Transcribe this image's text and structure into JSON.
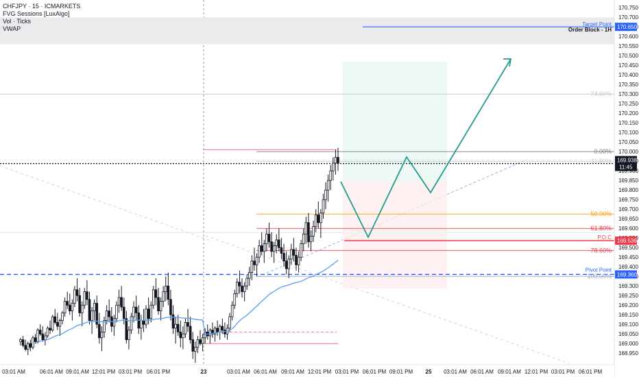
{
  "header": {
    "symbol_line": "CHFJPY · 15 · ICMARKETS",
    "indicator_1": "FVG Sessions [LuxAlgo]",
    "indicator_2": "Vol · Ticks",
    "indicator_3": "VWAP"
  },
  "chart_data": {
    "type": "candlestick",
    "symbol": "CHFJPY",
    "timeframe": "15",
    "exchange": "ICMARKETS",
    "ylim": [
      168.89,
      170.79
    ],
    "y_ticks": [
      "170.750",
      "170.700",
      "170.650",
      "170.600",
      "170.550",
      "170.500",
      "170.450",
      "170.400",
      "170.350",
      "170.300",
      "170.250",
      "170.200",
      "170.150",
      "170.100",
      "170.050",
      "170.000",
      "169.950",
      "169.900",
      "169.850",
      "169.800",
      "169.750",
      "169.700",
      "169.650",
      "169.600",
      "169.550",
      "169.500",
      "169.450",
      "169.400",
      "169.350",
      "169.300",
      "169.250",
      "169.200",
      "169.150",
      "169.100",
      "169.050",
      "169.000",
      "168.950"
    ],
    "x_labels": [
      "03:01 AM",
      "06:01 AM",
      "09:01 AM",
      "12:01 PM",
      "03:01 PM",
      "06:01 PM",
      "23",
      "03:01 AM",
      "06:01 AM",
      "09:01 AM",
      "12:01 PM",
      "03:01 PM",
      "06:01 PM",
      "09:01 PM",
      "25",
      "03:01 AM",
      "06:01 AM",
      "09:01 AM",
      "12:01 PM",
      "03:01 PM",
      "06:01 PM"
    ],
    "current_price": "169.938",
    "price_tags": [
      {
        "label": "170.650",
        "value": 170.65,
        "color": "#2962ff"
      },
      {
        "label": "169.536",
        "value": 169.536,
        "color": "#f23645"
      },
      {
        "label": "169.360",
        "value": 169.36,
        "color": "#2962ff"
      }
    ],
    "countdown": "11:45",
    "fib_levels": [
      {
        "label": "74.60%",
        "value": 170.3,
        "color": "#c9c9c9"
      },
      {
        "label": "0.00%",
        "value": 170.0,
        "color": "#787b86"
      },
      {
        "label": "11.80%",
        "value": 169.95,
        "color": "#c9c9c9"
      },
      {
        "label": "50.00%",
        "value": 169.675,
        "color": "#ff9800"
      },
      {
        "label": "61.80%",
        "value": 169.6,
        "color": "#f23645"
      },
      {
        "label": "78.60%",
        "value": 169.485,
        "color": "#f23645"
      },
      {
        "label": "100.00%",
        "value": 169.35,
        "color": "#9aa6c0"
      }
    ],
    "annotations": [
      {
        "label": "Target Point",
        "value": 170.65
      },
      {
        "label": "Order Block - 1H",
        "value": 170.65
      },
      {
        "label": "P.O.C",
        "value": 169.536
      },
      {
        "label": "Pivot Point",
        "value": 169.36
      }
    ],
    "order_block_zone": [
      170.56,
      170.7
    ],
    "projected_path": [
      {
        "x": "12:01 PM",
        "y": 169.94
      },
      {
        "x": "06:01 PM",
        "y": 169.58
      },
      {
        "x": "09:01 PM",
        "y": 170.02
      },
      {
        "x": "25",
        "y": 169.82
      },
      {
        "x": "06:01 AM",
        "y": 170.57
      }
    ],
    "candles": [
      [
        169.01,
        169.03,
        168.99,
        169.02
      ],
      [
        169.02,
        169.04,
        168.98,
        168.99
      ],
      [
        168.99,
        169.02,
        168.96,
        168.97
      ],
      [
        168.97,
        169.01,
        168.94,
        169.0
      ],
      [
        169.0,
        169.02,
        168.96,
        168.98
      ],
      [
        168.98,
        169.04,
        168.97,
        169.03
      ],
      [
        169.03,
        169.05,
        169.0,
        169.01
      ],
      [
        169.01,
        169.08,
        169.0,
        169.07
      ],
      [
        169.07,
        169.1,
        169.04,
        169.05
      ],
      [
        169.05,
        169.09,
        169.01,
        169.02
      ],
      [
        169.02,
        169.06,
        168.99,
        169.04
      ],
      [
        169.04,
        169.09,
        169.03,
        169.08
      ],
      [
        169.08,
        169.12,
        169.05,
        169.07
      ],
      [
        169.07,
        169.15,
        169.06,
        169.14
      ],
      [
        169.14,
        169.18,
        169.1,
        169.11
      ],
      [
        169.11,
        169.16,
        169.07,
        169.09
      ],
      [
        169.09,
        169.13,
        169.04,
        169.12
      ],
      [
        169.12,
        169.17,
        169.1,
        169.16
      ],
      [
        169.16,
        169.24,
        169.14,
        169.22
      ],
      [
        169.22,
        169.27,
        169.18,
        169.2
      ],
      [
        169.2,
        169.26,
        169.15,
        169.17
      ],
      [
        169.17,
        169.23,
        169.12,
        169.21
      ],
      [
        169.21,
        169.3,
        169.19,
        169.28
      ],
      [
        169.28,
        169.34,
        169.22,
        169.25
      ],
      [
        169.25,
        169.29,
        169.14,
        169.16
      ],
      [
        169.16,
        169.22,
        169.09,
        169.2
      ],
      [
        169.2,
        169.29,
        169.18,
        169.27
      ],
      [
        169.27,
        169.33,
        169.2,
        169.23
      ],
      [
        169.23,
        169.27,
        169.1,
        169.12
      ],
      [
        169.12,
        169.19,
        169.05,
        169.17
      ],
      [
        169.17,
        169.23,
        169.12,
        169.21
      ],
      [
        169.21,
        169.25,
        169.08,
        169.1
      ],
      [
        169.1,
        169.16,
        169.0,
        169.03
      ],
      [
        169.03,
        169.09,
        168.96,
        169.06
      ],
      [
        169.06,
        169.14,
        169.03,
        169.12
      ],
      [
        169.12,
        169.2,
        169.1,
        169.17
      ],
      [
        169.17,
        169.23,
        169.11,
        169.14
      ],
      [
        169.14,
        169.19,
        169.06,
        169.09
      ],
      [
        169.09,
        169.15,
        169.04,
        169.13
      ],
      [
        169.13,
        169.22,
        169.11,
        169.2
      ],
      [
        169.2,
        169.28,
        169.16,
        169.24
      ],
      [
        169.24,
        169.3,
        169.17,
        169.19
      ],
      [
        169.19,
        169.24,
        169.1,
        169.13
      ],
      [
        169.13,
        169.17,
        169.0,
        169.02
      ],
      [
        169.02,
        169.09,
        168.97,
        169.07
      ],
      [
        169.07,
        169.16,
        169.05,
        169.14
      ],
      [
        169.14,
        169.22,
        169.11,
        169.19
      ],
      [
        169.19,
        169.25,
        169.12,
        169.16
      ],
      [
        169.16,
        169.2,
        169.05,
        169.08
      ],
      [
        169.08,
        169.15,
        169.02,
        169.12
      ],
      [
        169.12,
        169.18,
        169.06,
        169.1
      ],
      [
        169.1,
        169.2,
        169.08,
        169.18
      ],
      [
        169.18,
        169.24,
        169.1,
        169.13
      ],
      [
        169.13,
        169.22,
        169.11,
        169.2
      ],
      [
        169.2,
        169.3,
        169.18,
        169.28
      ],
      [
        169.28,
        169.34,
        169.2,
        169.24
      ],
      [
        169.24,
        169.29,
        169.15,
        169.17
      ],
      [
        169.17,
        169.24,
        169.12,
        169.22
      ],
      [
        169.22,
        169.3,
        169.19,
        169.27
      ],
      [
        169.27,
        169.35,
        169.22,
        169.3
      ],
      [
        169.3,
        169.37,
        169.2,
        169.23
      ],
      [
        169.23,
        169.28,
        169.12,
        169.15
      ],
      [
        169.15,
        169.2,
        169.05,
        169.08
      ],
      [
        169.08,
        169.14,
        169.0,
        169.1
      ],
      [
        169.1,
        169.15,
        169.04,
        169.06
      ],
      [
        169.06,
        169.12,
        168.98,
        169.03
      ],
      [
        169.03,
        169.09,
        168.97,
        169.05
      ],
      [
        169.05,
        169.13,
        169.03,
        169.11
      ],
      [
        169.11,
        169.18,
        169.06,
        169.09
      ],
      [
        169.09,
        169.14,
        169.0,
        169.02
      ],
      [
        169.02,
        169.06,
        168.92,
        168.96
      ],
      [
        168.96,
        169.01,
        168.9,
        168.98
      ],
      [
        168.98,
        169.04,
        168.95,
        169.02
      ],
      [
        169.02,
        169.07,
        168.99,
        169.0
      ],
      [
        169.0,
        169.05,
        168.96,
        169.03
      ],
      [
        169.03,
        169.08,
        169.0,
        169.06
      ],
      [
        169.06,
        169.1,
        169.02,
        169.04
      ],
      [
        169.04,
        169.08,
        169.0,
        169.07
      ],
      [
        169.07,
        169.11,
        169.03,
        169.05
      ],
      [
        169.05,
        169.09,
        169.01,
        169.08
      ],
      [
        169.08,
        169.12,
        169.04,
        169.06
      ],
      [
        169.06,
        169.1,
        169.02,
        169.09
      ],
      [
        169.09,
        169.13,
        169.05,
        169.07
      ],
      [
        169.07,
        169.11,
        169.03,
        169.05
      ],
      [
        169.05,
        169.1,
        169.02,
        169.08
      ],
      [
        169.08,
        169.16,
        169.06,
        169.14
      ],
      [
        169.14,
        169.22,
        169.12,
        169.2
      ],
      [
        169.2,
        169.28,
        169.18,
        169.26
      ],
      [
        169.26,
        169.34,
        169.24,
        169.32
      ],
      [
        169.32,
        169.38,
        169.26,
        169.3
      ],
      [
        169.3,
        169.34,
        169.24,
        169.27
      ],
      [
        169.27,
        169.32,
        169.22,
        169.3
      ],
      [
        169.3,
        169.36,
        169.28,
        169.34
      ],
      [
        169.34,
        169.4,
        169.3,
        169.37
      ],
      [
        169.37,
        169.46,
        169.33,
        169.43
      ],
      [
        169.43,
        169.5,
        169.38,
        169.41
      ],
      [
        169.41,
        169.47,
        169.35,
        169.45
      ],
      [
        169.45,
        169.54,
        169.42,
        169.51
      ],
      [
        169.51,
        169.58,
        169.46,
        169.48
      ],
      [
        169.48,
        169.54,
        169.42,
        169.52
      ],
      [
        169.52,
        169.6,
        169.48,
        169.57
      ],
      [
        169.57,
        169.63,
        169.5,
        169.53
      ],
      [
        169.53,
        169.58,
        169.45,
        169.48
      ],
      [
        169.48,
        169.53,
        169.42,
        169.51
      ],
      [
        169.51,
        169.57,
        169.47,
        169.54
      ],
      [
        169.54,
        169.6,
        169.48,
        169.5
      ],
      [
        169.5,
        169.55,
        169.44,
        169.47
      ],
      [
        169.47,
        169.52,
        169.4,
        169.43
      ],
      [
        169.43,
        169.48,
        169.36,
        169.39
      ],
      [
        169.39,
        169.46,
        169.34,
        169.44
      ],
      [
        169.44,
        169.52,
        169.41,
        169.49
      ],
      [
        169.49,
        169.55,
        169.43,
        169.46
      ],
      [
        169.46,
        169.5,
        169.38,
        169.41
      ],
      [
        169.41,
        169.48,
        169.37,
        169.45
      ],
      [
        169.45,
        169.54,
        169.43,
        169.52
      ],
      [
        169.52,
        169.6,
        169.48,
        169.57
      ],
      [
        169.57,
        169.66,
        169.52,
        169.63
      ],
      [
        169.63,
        169.68,
        169.5,
        169.53
      ],
      [
        169.53,
        169.59,
        169.48,
        169.56
      ],
      [
        169.56,
        169.64,
        169.53,
        169.61
      ],
      [
        169.61,
        169.7,
        169.58,
        169.67
      ],
      [
        169.67,
        169.74,
        169.6,
        169.63
      ],
      [
        169.63,
        169.7,
        169.55,
        169.68
      ],
      [
        169.68,
        169.78,
        169.65,
        169.75
      ],
      [
        169.75,
        169.84,
        169.7,
        169.8
      ],
      [
        169.8,
        169.88,
        169.74,
        169.85
      ],
      [
        169.85,
        169.93,
        169.8,
        169.9
      ],
      [
        169.9,
        169.97,
        169.85,
        169.94
      ],
      [
        169.94,
        170.01,
        169.88,
        169.97
      ],
      [
        169.97,
        170.02,
        169.9,
        169.94
      ]
    ]
  }
}
